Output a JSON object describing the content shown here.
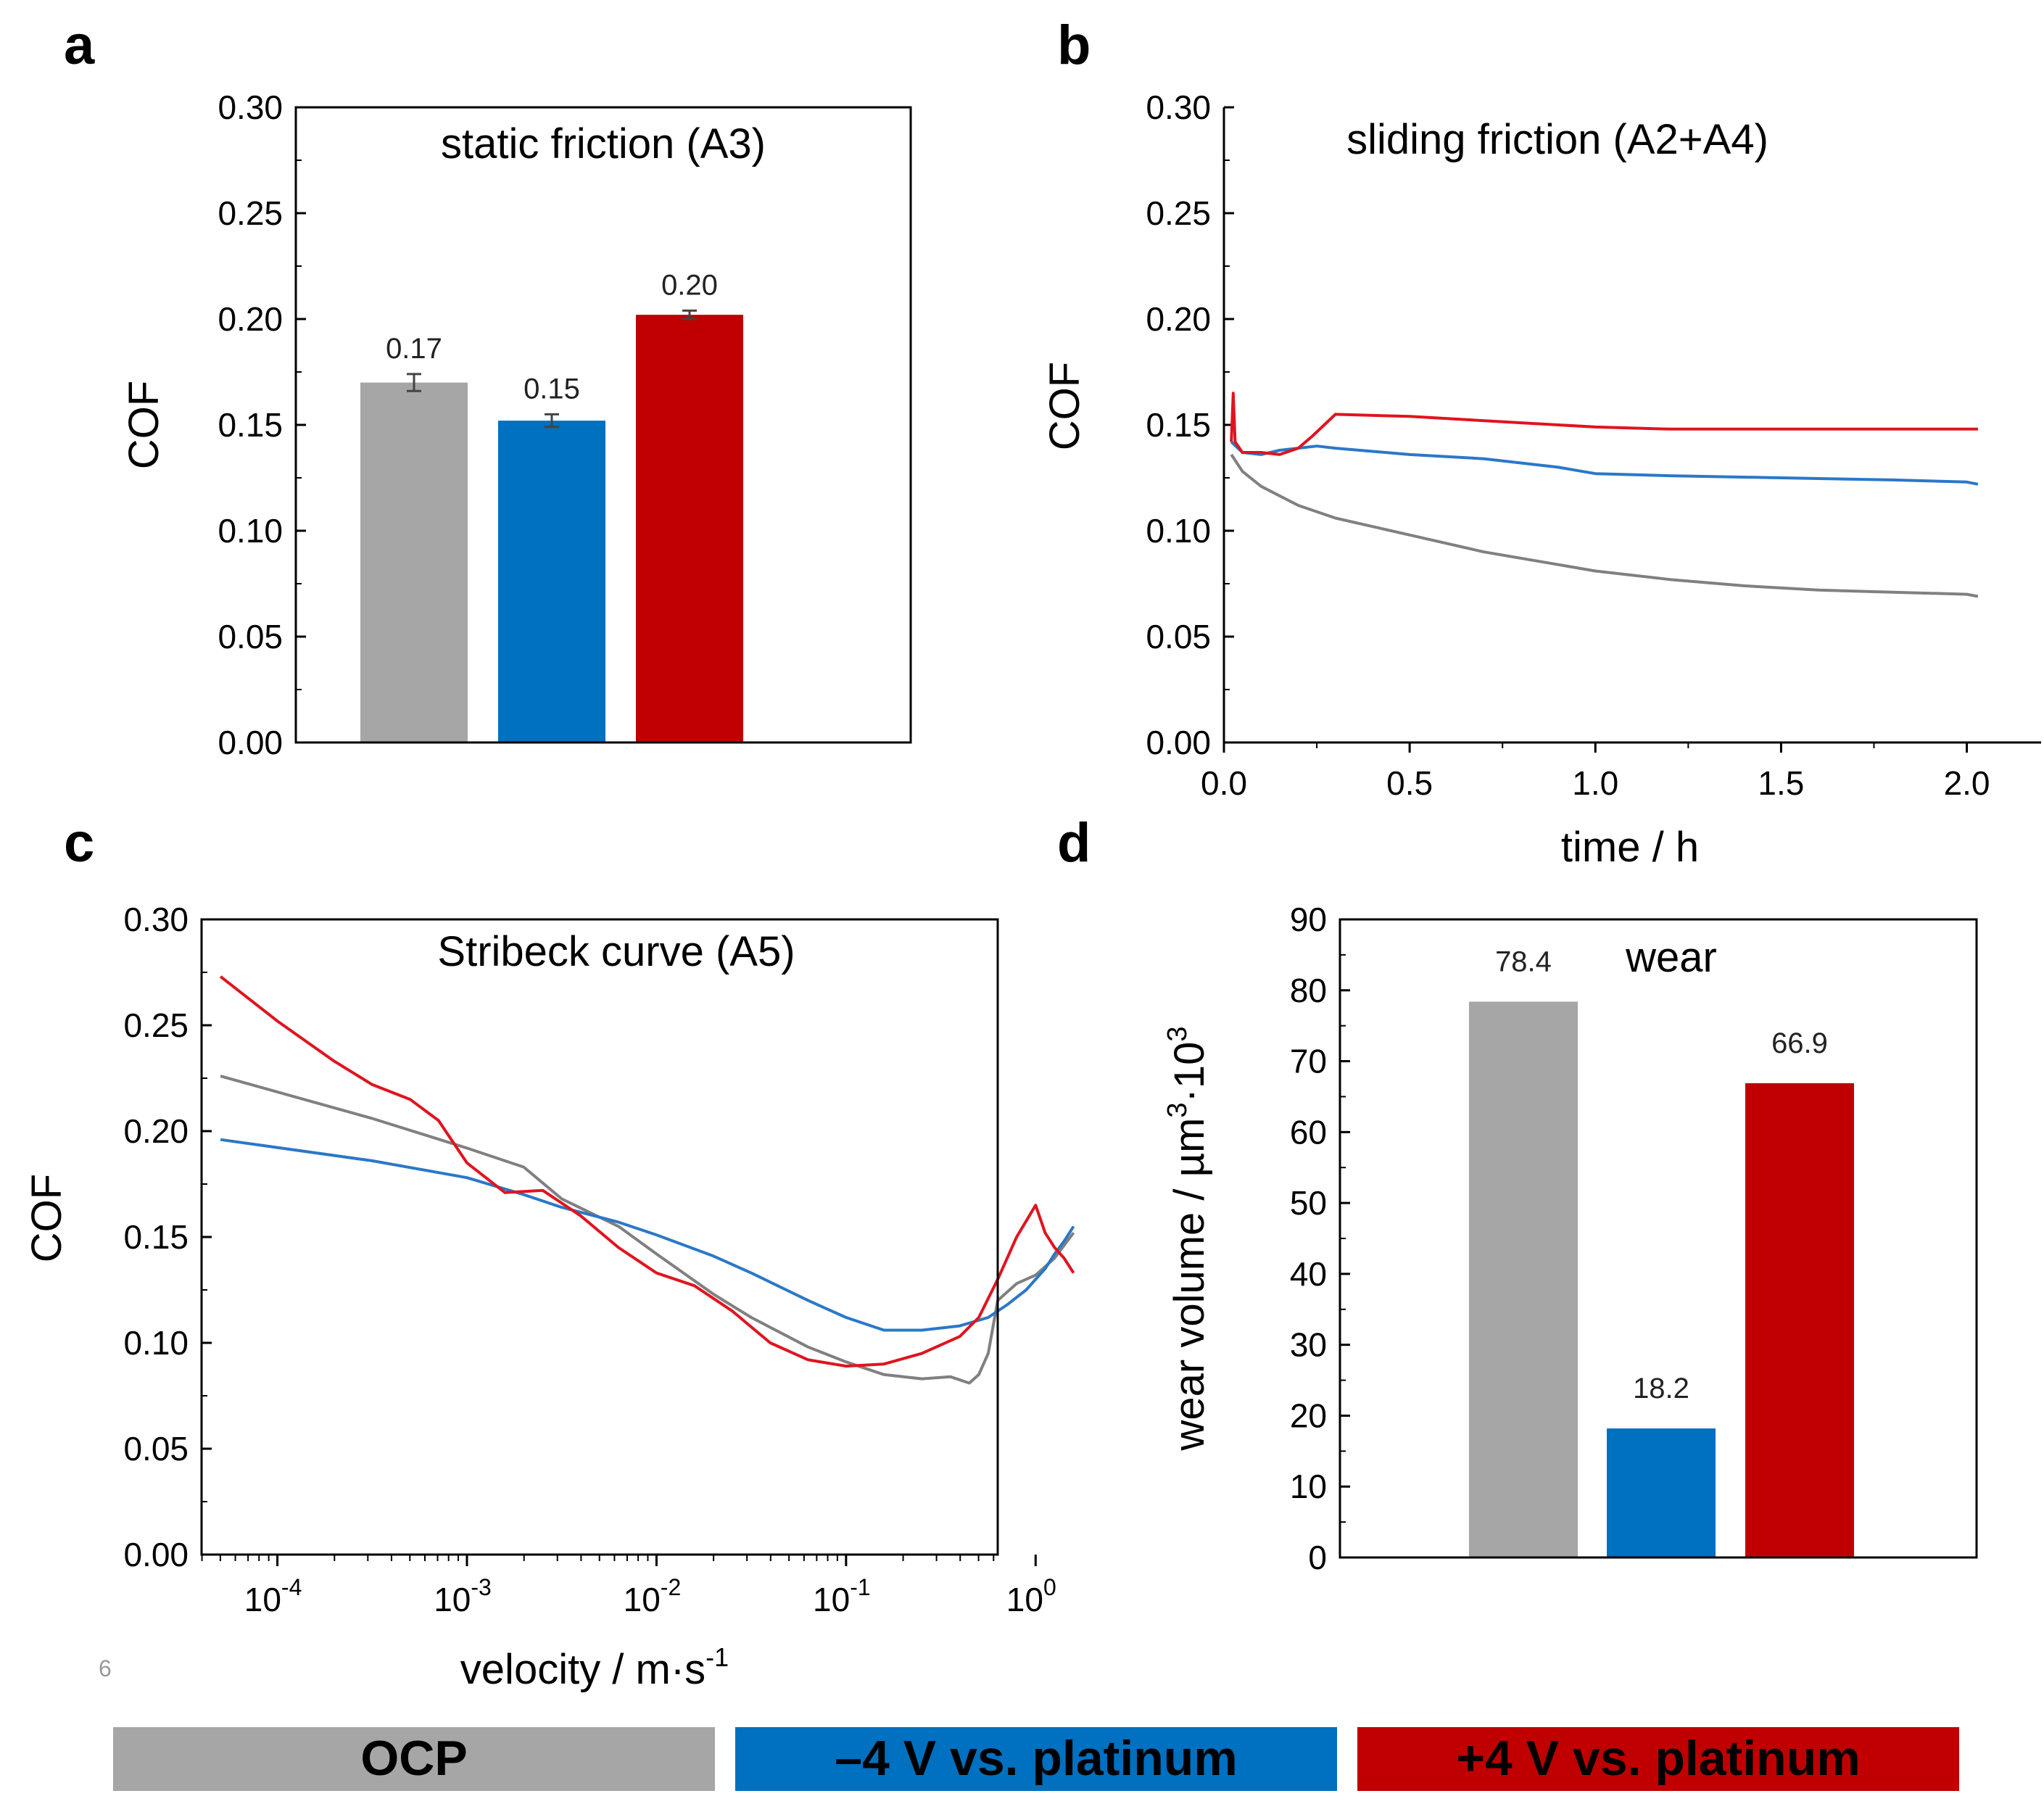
{
  "panels": {
    "a": "a",
    "b": "b",
    "c": "c",
    "d": "d"
  },
  "page_number": "6",
  "colors": {
    "ocp": "#a6a6a6",
    "neg4": "#0070c0",
    "pos4": "#c00000",
    "ocp_line": "#808080",
    "neg4_line": "#2a78c8",
    "pos4_line": "#e0141e"
  },
  "legend": {
    "ocp": "OCP",
    "neg4": "–4 V vs. platinum",
    "pos4": "+4 V vs. platinum"
  },
  "chart_data": [
    {
      "id": "a",
      "type": "bar",
      "title": "static friction (A3)",
      "xlabel": "",
      "ylabel": "COF",
      "ylim": [
        0,
        0.3
      ],
      "yticks": [
        "0.00",
        "0.05",
        "0.10",
        "0.15",
        "0.20",
        "0.25",
        "0.30"
      ],
      "categories": [
        "OCP",
        "–4 V vs. platinum",
        "+4 V vs. platinum"
      ],
      "values": [
        0.17,
        0.152,
        0.202
      ],
      "errors": [
        0.004,
        0.003,
        0.002
      ],
      "labels": [
        "0.17",
        "0.15",
        "0.20"
      ]
    },
    {
      "id": "b",
      "type": "line",
      "title": "sliding friction (A2+A4)",
      "xlabel": "time / h",
      "ylabel": "COF",
      "xlim": [
        0,
        2.2
      ],
      "ylim": [
        0,
        0.3
      ],
      "xticks": [
        "0.0",
        "0.5",
        "1.0",
        "1.5",
        "2.0"
      ],
      "yticks": [
        "0.00",
        "0.05",
        "0.10",
        "0.15",
        "0.20",
        "0.25",
        "0.30"
      ],
      "series": [
        {
          "name": "OCP",
          "x": [
            0.02,
            0.05,
            0.1,
            0.2,
            0.3,
            0.5,
            0.7,
            0.9,
            1.0,
            1.2,
            1.4,
            1.6,
            1.8,
            2.0,
            2.03
          ],
          "y": [
            0.136,
            0.128,
            0.121,
            0.112,
            0.106,
            0.098,
            0.09,
            0.084,
            0.081,
            0.077,
            0.074,
            0.072,
            0.071,
            0.07,
            0.069
          ]
        },
        {
          "name": "–4 V vs. platinum",
          "x": [
            0.02,
            0.05,
            0.1,
            0.15,
            0.2,
            0.25,
            0.3,
            0.5,
            0.7,
            0.9,
            1.0,
            1.2,
            1.5,
            1.8,
            2.0,
            2.03
          ],
          "y": [
            0.142,
            0.137,
            0.136,
            0.138,
            0.139,
            0.14,
            0.139,
            0.136,
            0.134,
            0.13,
            0.127,
            0.126,
            0.125,
            0.124,
            0.123,
            0.122
          ]
        },
        {
          "name": "+4 V vs. platinum",
          "x": [
            0.02,
            0.025,
            0.03,
            0.05,
            0.1,
            0.15,
            0.2,
            0.24,
            0.27,
            0.3,
            0.5,
            0.8,
            1.0,
            1.2,
            1.5,
            1.8,
            2.0,
            2.03
          ],
          "y": [
            0.142,
            0.165,
            0.142,
            0.137,
            0.137,
            0.136,
            0.139,
            0.145,
            0.15,
            0.155,
            0.154,
            0.151,
            0.149,
            0.148,
            0.148,
            0.148,
            0.148,
            0.148
          ]
        }
      ]
    },
    {
      "id": "c",
      "type": "line",
      "title": "Stribeck curve (A5)",
      "xlabel": "velocity / m·s",
      "xlabel_sup": "-1",
      "ylabel": "COF",
      "xscale": "log",
      "xlim_log10": [
        -4.4,
        -0.2
      ],
      "ylim": [
        0,
        0.3
      ],
      "xticks": [
        {
          "base": "10",
          "exp": "-4"
        },
        {
          "base": "10",
          "exp": "-3"
        },
        {
          "base": "10",
          "exp": "-2"
        },
        {
          "base": "10",
          "exp": "-1"
        },
        {
          "base": "10",
          "exp": "0"
        }
      ],
      "yticks": [
        "0.00",
        "0.05",
        "0.10",
        "0.15",
        "0.20",
        "0.25",
        "0.30"
      ],
      "series": [
        {
          "name": "OCP",
          "log10x": [
            -4.3,
            -3.5,
            -3.0,
            -2.7,
            -2.5,
            -2.2,
            -2.0,
            -1.7,
            -1.5,
            -1.2,
            -1.0,
            -0.8,
            -0.6,
            -0.45,
            -0.35,
            -0.3,
            -0.25,
            -0.2,
            -0.1,
            0.0,
            0.1,
            0.2
          ],
          "y": [
            0.226,
            0.206,
            0.192,
            0.183,
            0.168,
            0.155,
            0.142,
            0.123,
            0.112,
            0.098,
            0.091,
            0.085,
            0.083,
            0.084,
            0.081,
            0.085,
            0.095,
            0.12,
            0.128,
            0.132,
            0.14,
            0.152
          ]
        },
        {
          "name": "–4 V vs. platinum",
          "log10x": [
            -4.3,
            -3.5,
            -3.0,
            -2.7,
            -2.5,
            -2.2,
            -2.0,
            -1.7,
            -1.5,
            -1.2,
            -1.0,
            -0.8,
            -0.6,
            -0.4,
            -0.25,
            -0.15,
            -0.05,
            0.05,
            0.1,
            0.15,
            0.2
          ],
          "y": [
            0.196,
            0.186,
            0.178,
            0.17,
            0.164,
            0.157,
            0.151,
            0.141,
            0.133,
            0.12,
            0.112,
            0.106,
            0.106,
            0.108,
            0.112,
            0.118,
            0.125,
            0.135,
            0.142,
            0.148,
            0.155
          ]
        },
        {
          "name": "+4 V vs. platinum",
          "log10x": [
            -4.3,
            -4.0,
            -3.7,
            -3.5,
            -3.3,
            -3.15,
            -3.0,
            -2.8,
            -2.6,
            -2.4,
            -2.2,
            -2.0,
            -1.8,
            -1.6,
            -1.4,
            -1.2,
            -1.0,
            -0.8,
            -0.6,
            -0.4,
            -0.3,
            -0.2,
            -0.1,
            0.0,
            0.05,
            0.1,
            0.15,
            0.2
          ],
          "y": [
            0.273,
            0.252,
            0.233,
            0.222,
            0.215,
            0.205,
            0.185,
            0.171,
            0.172,
            0.16,
            0.145,
            0.133,
            0.127,
            0.115,
            0.1,
            0.092,
            0.089,
            0.09,
            0.095,
            0.103,
            0.112,
            0.13,
            0.15,
            0.165,
            0.152,
            0.145,
            0.14,
            0.133
          ]
        }
      ]
    },
    {
      "id": "d",
      "type": "bar",
      "title": "wear",
      "xlabel": "",
      "ylabel": "wear volume / µm",
      "ylabel_sup1": "3",
      "ylabel_mid": "·10",
      "ylabel_sup2": "3",
      "ylim": [
        0,
        90
      ],
      "yticks": [
        "0",
        "10",
        "20",
        "30",
        "40",
        "50",
        "60",
        "70",
        "80",
        "90"
      ],
      "categories": [
        "OCP",
        "–4 V vs. platinum",
        "+4 V vs. platinum"
      ],
      "values": [
        78.4,
        18.2,
        66.9
      ],
      "labels": [
        "78.4",
        "18.2",
        "66.9"
      ]
    }
  ]
}
